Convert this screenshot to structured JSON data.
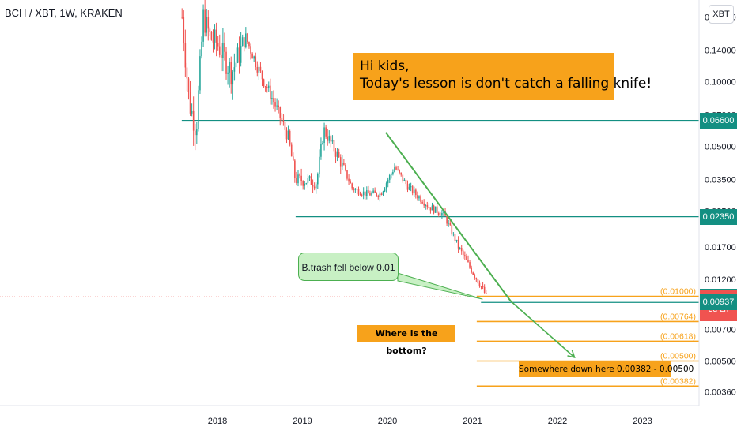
{
  "header": {
    "symbol": "BCH / XBT, 1W, KRAKEN",
    "currency": "XBT"
  },
  "annotations": {
    "banner_line1": "Hi kids,",
    "banner_line2": "Today's lesson is don't catch a falling knife!",
    "bubble": "B.trash fell below 0.01",
    "bottom_question": "Where is the bottom?",
    "somewhere": "Somewhere down here 0.00382 - 0.00500"
  },
  "colors": {
    "up": "#26a69a",
    "down": "#ef5350",
    "support": "#138f82",
    "trendline": "#4caf50",
    "fib": "#f7a21b",
    "current": "#f05350",
    "axis_text": "#131722"
  },
  "chart_data": {
    "type": "candlestick",
    "title": "BCH / XBT, 1W, KRAKEN",
    "x_tick_labels": [
      "2018",
      "2019",
      "2020",
      "2021",
      "2022",
      "2023"
    ],
    "y_scale": "log",
    "ylim": [
      0.0031,
      0.24
    ],
    "y_tick_labels": [
      "0.20000",
      "0.14000",
      "0.10000",
      "0.07000",
      "0.05000",
      "0.03500",
      "0.02500",
      "0.01700",
      "0.01200",
      "0.00700",
      "0.00500",
      "0.00360"
    ],
    "support_levels": [
      {
        "value": 0.066,
        "label": "0.06600"
      },
      {
        "value": 0.0235,
        "label": "0.02350"
      },
      {
        "value": 0.00937,
        "label": "0.00937"
      }
    ],
    "fib_levels": [
      {
        "value": 0.01,
        "label": "(0.01000)"
      },
      {
        "value": 0.00764,
        "label": "(0.00764)"
      },
      {
        "value": 0.00618,
        "label": "(0.00618)"
      },
      {
        "value": 0.005,
        "label": "(0.00500)"
      },
      {
        "value": 0.00382,
        "label": "(0.00382)"
      }
    ],
    "price_tags": [
      {
        "value": 0.066,
        "label": "0.06600",
        "kind": "support"
      },
      {
        "value": 0.0235,
        "label": "0.02350",
        "kind": "support"
      },
      {
        "value": 0.01,
        "label": "0.01000",
        "kind": "support"
      },
      {
        "value": 0.00994,
        "label": "0.00994",
        "kind": "current",
        "sub": "5d 2h"
      },
      {
        "value": 0.00937,
        "label": "0.00937",
        "kind": "support"
      }
    ],
    "current_price": 0.00994,
    "price_path": [
      [
        "2017-08",
        0.2
      ],
      [
        "2017-09",
        0.08
      ],
      [
        "2017-10",
        0.06
      ],
      [
        "2017-11",
        0.2
      ],
      [
        "2017-12",
        0.16
      ],
      [
        "2018-01",
        0.15
      ],
      [
        "2018-03",
        0.11
      ],
      [
        "2018-05",
        0.16
      ],
      [
        "2018-07",
        0.11
      ],
      [
        "2018-09",
        0.08
      ],
      [
        "2018-11",
        0.055
      ],
      [
        "2018-12",
        0.035
      ],
      [
        "2019-03",
        0.034
      ],
      [
        "2019-04",
        0.06
      ],
      [
        "2019-06",
        0.045
      ],
      [
        "2019-08",
        0.032
      ],
      [
        "2019-10",
        0.03
      ],
      [
        "2019-12",
        0.03
      ],
      [
        "2020-02",
        0.04
      ],
      [
        "2020-04",
        0.032
      ],
      [
        "2020-07",
        0.026
      ],
      [
        "2020-09",
        0.024
      ],
      [
        "2020-11",
        0.017
      ],
      [
        "2021-01",
        0.013
      ],
      [
        "2021-02",
        0.0115
      ],
      [
        "2021-03",
        0.00994
      ]
    ]
  }
}
